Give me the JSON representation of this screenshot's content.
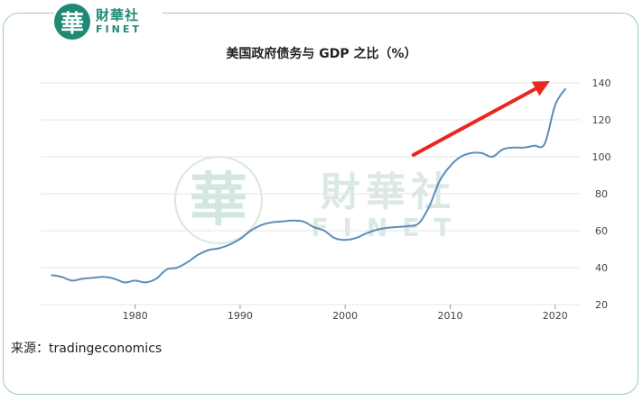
{
  "logo": {
    "seal_char": "華",
    "name_cn": "財華社",
    "name_en": "FINET"
  },
  "watermark": {
    "seal_char": "華",
    "name_cn": "財華社",
    "name_en": "FINET"
  },
  "source": "来源：tradingeconomics",
  "colors": {
    "line": "#5b8db8",
    "arrow": "#e8271f",
    "brand": "#1e8a73",
    "watermark": "#cfe3dc"
  },
  "chart_data": {
    "type": "line",
    "title": "美国政府债务与 GDP 之比（%）",
    "xlabel": "",
    "ylabel": "",
    "xlim": [
      1971,
      2022
    ],
    "ylim": [
      20,
      140
    ],
    "xticks": [
      1980,
      1990,
      2000,
      2010,
      2020
    ],
    "yticks": [
      20,
      40,
      60,
      80,
      100,
      120,
      140
    ],
    "y_axis_position": "right",
    "grid": "horizontal",
    "series": [
      {
        "name": "",
        "x": [
          1972,
          1973,
          1974,
          1975,
          1976,
          1977,
          1978,
          1979,
          1980,
          1981,
          1982,
          1983,
          1984,
          1985,
          1986,
          1987,
          1988,
          1989,
          1990,
          1991,
          1992,
          1993,
          1994,
          1995,
          1996,
          1997,
          1998,
          1999,
          2000,
          2001,
          2002,
          2003,
          2004,
          2005,
          2006,
          2007,
          2008,
          2009,
          2010,
          2011,
          2012,
          2013,
          2014,
          2015,
          2016,
          2017,
          2018,
          2019,
          2020,
          2021
        ],
        "values": [
          36,
          35,
          33,
          34,
          34.5,
          35,
          34,
          32,
          33,
          32,
          34,
          39,
          40,
          43,
          47,
          49.5,
          50.5,
          52.5,
          55.5,
          60,
          63,
          64.5,
          65,
          65.5,
          65,
          62,
          60,
          56,
          55,
          56,
          58.5,
          60.5,
          61.5,
          62,
          62.5,
          64,
          73,
          87,
          95,
          100,
          102,
          102,
          100,
          104,
          105,
          105,
          106,
          107,
          128,
          137
        ]
      }
    ],
    "annotations": [
      {
        "type": "arrow",
        "from": [
          2006.5,
          101
        ],
        "to": [
          2019.5,
          141
        ]
      }
    ]
  }
}
